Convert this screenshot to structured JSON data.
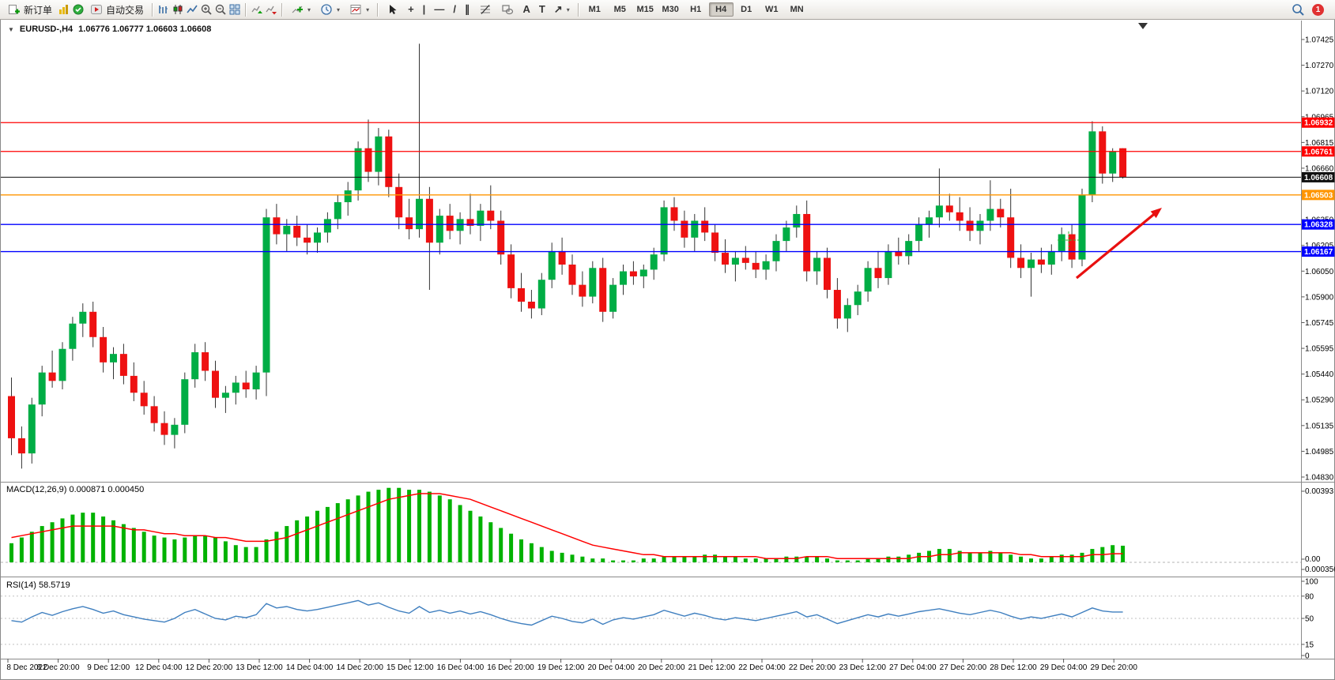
{
  "toolbar": {
    "new_order_label": "新订单",
    "autotrade_label": "自动交易",
    "timeframes": [
      "M1",
      "M5",
      "M15",
      "M30",
      "H1",
      "H4",
      "D1",
      "W1",
      "MN"
    ],
    "active_timeframe": "H4",
    "notification_badge": "1"
  },
  "icons": {
    "crosshair": "+",
    "vertical_line": "|",
    "horizontal_line": "—",
    "trendline": "/",
    "channel": "∥",
    "text": "A",
    "text_label": "T",
    "arrows": "↗",
    "dropdown": "▾",
    "title_triangle": "▼"
  },
  "colors": {
    "bull": "#00AD45",
    "bear": "#EE1111",
    "wick": "#333333",
    "macd_hist": "#00B200",
    "macd_signal": "#FF0000",
    "rsi_line": "#3F7FBF",
    "line_red": "#FF0000",
    "line_orange": "#FF9500",
    "line_blue": "#0000FF",
    "price_line": "#333333",
    "arrow": "#E81010",
    "marker_green": "#2DB52D"
  },
  "chart": {
    "title": "EURUSD-,H4",
    "ohlc": "1.06776 1.06777 1.06603 1.06608"
  },
  "chart_data": [
    {
      "type": "candlestick",
      "title": "EURUSD-,H4",
      "ohlc_display": "1.06776 1.06777 1.06603 1.06608",
      "ylim": [
        1.0483,
        1.07425
      ],
      "y_axis_labels": [
        "1.07425",
        "1.07270",
        "1.07120",
        "1.06965",
        "1.06815",
        "1.06660",
        "1.06505",
        "1.06350",
        "1.06205",
        "1.06050",
        "1.05900",
        "1.05745",
        "1.05595",
        "1.05440",
        "1.05290",
        "1.05135",
        "1.04985",
        "1.04830"
      ],
      "x_labels": [
        "8 Dec 2022",
        "8 Dec 20:00",
        "9 Dec 12:00",
        "12 Dec 04:00",
        "12 Dec 20:00",
        "13 Dec 12:00",
        "14 Dec 04:00",
        "14 Dec 20:00",
        "15 Dec 12:00",
        "16 Dec 04:00",
        "16 Dec 20:00",
        "19 Dec 12:00",
        "20 Dec 04:00",
        "20 Dec 20:00",
        "21 Dec 12:00",
        "22 Dec 04:00",
        "22 Dec 20:00",
        "23 Dec 12:00",
        "27 Dec 04:00",
        "27 Dec 20:00",
        "28 Dec 12:00",
        "29 Dec 04:00",
        "29 Dec 20:00"
      ],
      "hlines": [
        {
          "price": 1.06932,
          "label": "1.06932",
          "color": "#FF0000",
          "style": "level"
        },
        {
          "price": 1.06761,
          "label": "1.06761",
          "color": "#FF0000",
          "style": "level"
        },
        {
          "price": 1.06608,
          "label": "1.06608",
          "color": "#111111",
          "style": "current"
        },
        {
          "price": 1.06503,
          "label": "1.06503",
          "color": "#FF9500",
          "style": "level"
        },
        {
          "price": 1.06328,
          "label": "1.06328",
          "color": "#0000FF",
          "style": "level"
        },
        {
          "price": 1.06167,
          "label": "1.06167",
          "color": "#0000FF",
          "style": "level"
        }
      ],
      "arrow": {
        "from": [
          1362,
          352
        ],
        "to": [
          1470,
          263
        ]
      },
      "trade_marker": {
        "x": 1352,
        "y": 304
      },
      "candles": [
        [
          1.0531,
          1.0542,
          1.0496,
          1.0506
        ],
        [
          1.0506,
          1.0513,
          1.0488,
          1.0497
        ],
        [
          1.0497,
          1.053,
          1.0491,
          1.0526
        ],
        [
          1.0526,
          1.0549,
          1.0519,
          1.0545
        ],
        [
          1.0545,
          1.0558,
          1.0536,
          1.054
        ],
        [
          1.054,
          1.0563,
          1.0535,
          1.0559
        ],
        [
          1.0559,
          1.0578,
          1.0552,
          1.0574
        ],
        [
          1.0574,
          1.0586,
          1.0566,
          1.0581
        ],
        [
          1.0581,
          1.0587,
          1.056,
          1.0566
        ],
        [
          1.0566,
          1.0572,
          1.0545,
          1.0551
        ],
        [
          1.0551,
          1.056,
          1.0541,
          1.0556
        ],
        [
          1.0556,
          1.0562,
          1.0538,
          1.0543
        ],
        [
          1.0543,
          1.0551,
          1.0528,
          1.0533
        ],
        [
          1.0533,
          1.054,
          1.052,
          1.0525
        ],
        [
          1.0525,
          1.0531,
          1.051,
          1.0515
        ],
        [
          1.0515,
          1.0522,
          1.0502,
          1.0508
        ],
        [
          1.0508,
          1.0518,
          1.05,
          1.0514
        ],
        [
          1.0514,
          1.0545,
          1.0509,
          1.0541
        ],
        [
          1.0541,
          1.0562,
          1.0536,
          1.0557
        ],
        [
          1.0557,
          1.0563,
          1.054,
          1.0546
        ],
        [
          1.0546,
          1.0552,
          1.0524,
          1.053
        ],
        [
          1.053,
          1.0537,
          1.0521,
          1.0533
        ],
        [
          1.0533,
          1.0543,
          1.0526,
          1.0539
        ],
        [
          1.0539,
          1.0546,
          1.053,
          1.0535
        ],
        [
          1.0535,
          1.0549,
          1.0529,
          1.0545
        ],
        [
          1.0545,
          1.0642,
          1.0531,
          1.0637
        ],
        [
          1.0637,
          1.0645,
          1.0621,
          1.0627
        ],
        [
          1.0627,
          1.0636,
          1.0617,
          1.0632
        ],
        [
          1.0632,
          1.0638,
          1.062,
          1.0625
        ],
        [
          1.0625,
          1.0633,
          1.0615,
          1.0622
        ],
        [
          1.0622,
          1.0631,
          1.0616,
          1.0628
        ],
        [
          1.0628,
          1.064,
          1.0622,
          1.0636
        ],
        [
          1.0636,
          1.065,
          1.063,
          1.0646
        ],
        [
          1.0646,
          1.0658,
          1.0638,
          1.0653
        ],
        [
          1.0653,
          1.0682,
          1.0647,
          1.0678
        ],
        [
          1.0678,
          1.0695,
          1.0658,
          1.0664
        ],
        [
          1.0664,
          1.069,
          1.0656,
          1.0685
        ],
        [
          1.0685,
          1.0689,
          1.0649,
          1.0655
        ],
        [
          1.0655,
          1.0663,
          1.063,
          1.0637
        ],
        [
          1.0637,
          1.0648,
          1.0624,
          1.063
        ],
        [
          1.063,
          1.074,
          1.0625,
          1.0648
        ],
        [
          1.0648,
          1.0655,
          1.0594,
          1.0622
        ],
        [
          1.0622,
          1.0642,
          1.0615,
          1.0638
        ],
        [
          1.0638,
          1.0645,
          1.0624,
          1.0629
        ],
        [
          1.0629,
          1.064,
          1.0621,
          1.0636
        ],
        [
          1.0636,
          1.0651,
          1.0627,
          1.0632
        ],
        [
          1.0632,
          1.0645,
          1.0623,
          1.0641
        ],
        [
          1.0641,
          1.0656,
          1.063,
          1.0635
        ],
        [
          1.0635,
          1.0641,
          1.0609,
          1.0615
        ],
        [
          1.0615,
          1.0621,
          1.0589,
          1.0595
        ],
        [
          1.0595,
          1.0604,
          1.0581,
          1.0587
        ],
        [
          1.0587,
          1.0594,
          1.0577,
          1.0583
        ],
        [
          1.0583,
          1.0604,
          1.0579,
          1.06
        ],
        [
          1.06,
          1.0622,
          1.0595,
          1.0617
        ],
        [
          1.0617,
          1.0625,
          1.0603,
          1.0609
        ],
        [
          1.0609,
          1.0615,
          1.0591,
          1.0597
        ],
        [
          1.0597,
          1.0605,
          1.0584,
          1.059
        ],
        [
          1.059,
          1.0611,
          1.0586,
          1.0607
        ],
        [
          1.0607,
          1.0613,
          1.0575,
          1.0581
        ],
        [
          1.0581,
          1.0601,
          1.0577,
          1.0597
        ],
        [
          1.0597,
          1.0609,
          1.0591,
          1.0605
        ],
        [
          1.0605,
          1.0611,
          1.0597,
          1.0602
        ],
        [
          1.0602,
          1.0609,
          1.0595,
          1.0606
        ],
        [
          1.0606,
          1.0619,
          1.06,
          1.0615
        ],
        [
          1.0615,
          1.0647,
          1.0611,
          1.0643
        ],
        [
          1.0643,
          1.0649,
          1.0629,
          1.0635
        ],
        [
          1.0635,
          1.0641,
          1.0619,
          1.0625
        ],
        [
          1.0625,
          1.0639,
          1.0617,
          1.0635
        ],
        [
          1.0635,
          1.0643,
          1.0623,
          1.0628
        ],
        [
          1.0628,
          1.0633,
          1.0611,
          1.0616
        ],
        [
          1.0616,
          1.0624,
          1.0604,
          1.0609
        ],
        [
          1.0609,
          1.0617,
          1.0599,
          1.0613
        ],
        [
          1.0613,
          1.062,
          1.0606,
          1.061
        ],
        [
          1.061,
          1.0617,
          1.0601,
          1.0606
        ],
        [
          1.0606,
          1.0615,
          1.06,
          1.0611
        ],
        [
          1.0611,
          1.0627,
          1.0605,
          1.0623
        ],
        [
          1.0623,
          1.0635,
          1.0617,
          1.0631
        ],
        [
          1.0631,
          1.0644,
          1.0625,
          1.0639
        ],
        [
          1.0639,
          1.0647,
          1.0599,
          1.0605
        ],
        [
          1.0605,
          1.0617,
          1.0597,
          1.0613
        ],
        [
          1.0613,
          1.0619,
          1.0589,
          1.0594
        ],
        [
          1.0594,
          1.0601,
          1.0571,
          1.0577
        ],
        [
          1.0577,
          1.0589,
          1.0569,
          1.0585
        ],
        [
          1.0585,
          1.0597,
          1.0579,
          1.0593
        ],
        [
          1.0593,
          1.0611,
          1.0587,
          1.0607
        ],
        [
          1.0607,
          1.0617,
          1.0595,
          1.0601
        ],
        [
          1.0601,
          1.0621,
          1.0597,
          1.0617
        ],
        [
          1.0617,
          1.0625,
          1.0609,
          1.0614
        ],
        [
          1.0614,
          1.0627,
          1.0609,
          1.0623
        ],
        [
          1.0623,
          1.0637,
          1.0617,
          1.0633
        ],
        [
          1.0633,
          1.0641,
          1.0625,
          1.0637
        ],
        [
          1.0637,
          1.0666,
          1.0631,
          1.0644
        ],
        [
          1.0644,
          1.0651,
          1.0635,
          1.064
        ],
        [
          1.064,
          1.0649,
          1.0629,
          1.0635
        ],
        [
          1.0635,
          1.0643,
          1.0623,
          1.0629
        ],
        [
          1.0629,
          1.0639,
          1.0621,
          1.0635
        ],
        [
          1.0635,
          1.0659,
          1.0629,
          1.0642
        ],
        [
          1.0642,
          1.0648,
          1.0631,
          1.0637
        ],
        [
          1.0637,
          1.0654,
          1.0607,
          1.0613
        ],
        [
          1.0613,
          1.0621,
          1.0601,
          1.0607
        ],
        [
          1.0607,
          1.0616,
          1.059,
          1.0612
        ],
        [
          1.0612,
          1.0619,
          1.0604,
          1.0609
        ],
        [
          1.0609,
          1.0621,
          1.0603,
          1.0617
        ],
        [
          1.0617,
          1.0631,
          1.0611,
          1.0627
        ],
        [
          1.0627,
          1.0633,
          1.0607,
          1.0612
        ],
        [
          1.0612,
          1.0654,
          1.0608,
          1.065
        ],
        [
          1.065,
          1.0694,
          1.0646,
          1.0688
        ],
        [
          1.0688,
          1.0691,
          1.0657,
          1.0663
        ],
        [
          1.0663,
          1.0678,
          1.0658,
          1.0676
        ],
        [
          1.0678,
          1.0678,
          1.066,
          1.0661
        ]
      ]
    },
    {
      "type": "bar",
      "name": "MACD",
      "label": "MACD(12,26,9) 0.000871 0.000450",
      "ymax": 0.00393,
      "y_axis_labels": [
        "0.00393",
        "0.00",
        "0.000356"
      ],
      "values": [
        0.001,
        0.0013,
        0.0016,
        0.0019,
        0.0021,
        0.0023,
        0.0025,
        0.0026,
        0.0026,
        0.0024,
        0.0022,
        0.002,
        0.0018,
        0.0016,
        0.0014,
        0.0013,
        0.0012,
        0.0013,
        0.0014,
        0.0014,
        0.0013,
        0.0011,
        0.0009,
        0.0008,
        0.0008,
        0.0012,
        0.0016,
        0.0019,
        0.0022,
        0.0024,
        0.0027,
        0.0029,
        0.0031,
        0.0033,
        0.0035,
        0.0037,
        0.0038,
        0.0039,
        0.0039,
        0.0038,
        0.0038,
        0.0037,
        0.0035,
        0.0033,
        0.003,
        0.0027,
        0.0024,
        0.0021,
        0.0018,
        0.0015,
        0.0012,
        0.001,
        0.0008,
        0.0006,
        0.0005,
        0.0004,
        0.0003,
        0.0002,
        0.0002,
        0.0001,
        0.0001,
        0.0001,
        0.0002,
        0.0002,
        0.0003,
        0.0003,
        0.0003,
        0.0003,
        0.0004,
        0.0004,
        0.0003,
        0.0003,
        0.0002,
        0.0002,
        0.0002,
        0.0002,
        0.0003,
        0.0003,
        0.0003,
        0.0003,
        0.0002,
        0.0001,
        0.0001,
        0.0001,
        0.0002,
        0.0002,
        0.0003,
        0.0003,
        0.0004,
        0.0005,
        0.0006,
        0.0007,
        0.0007,
        0.0006,
        0.0005,
        0.0005,
        0.0006,
        0.0005,
        0.0004,
        0.0003,
        0.0002,
        0.0002,
        0.0003,
        0.0004,
        0.0004,
        0.0005,
        0.0007,
        0.0008,
        0.0009,
        0.00087
      ],
      "signal": [
        0.0013,
        0.0014,
        0.0015,
        0.0016,
        0.0017,
        0.0018,
        0.0019,
        0.0019,
        0.0019,
        0.0019,
        0.0019,
        0.0018,
        0.0017,
        0.0017,
        0.0016,
        0.0015,
        0.0015,
        0.0014,
        0.0014,
        0.0014,
        0.0013,
        0.0013,
        0.0012,
        0.0011,
        0.0011,
        0.0011,
        0.0012,
        0.0013,
        0.0015,
        0.0017,
        0.0019,
        0.0021,
        0.0023,
        0.0025,
        0.0027,
        0.0029,
        0.0031,
        0.0033,
        0.0034,
        0.0035,
        0.0036,
        0.0036,
        0.0036,
        0.0035,
        0.0034,
        0.0033,
        0.0031,
        0.0029,
        0.0027,
        0.0025,
        0.0023,
        0.0021,
        0.0019,
        0.0017,
        0.0015,
        0.0013,
        0.0011,
        0.0009,
        0.0008,
        0.0007,
        0.0006,
        0.0005,
        0.0004,
        0.0004,
        0.0003,
        0.0003,
        0.0003,
        0.0003,
        0.0003,
        0.0003,
        0.0003,
        0.0003,
        0.0003,
        0.0003,
        0.0002,
        0.0002,
        0.0002,
        0.0002,
        0.0003,
        0.0003,
        0.0003,
        0.0002,
        0.0002,
        0.0002,
        0.0002,
        0.0002,
        0.0002,
        0.0002,
        0.0002,
        0.0003,
        0.0003,
        0.0004,
        0.0004,
        0.0005,
        0.0005,
        0.0005,
        0.0005,
        0.0005,
        0.0005,
        0.0004,
        0.0004,
        0.0003,
        0.0003,
        0.0003,
        0.0003,
        0.0003,
        0.0004,
        0.0004,
        0.00045,
        0.00045
      ]
    },
    {
      "type": "line",
      "name": "RSI",
      "label": "RSI(14) 58.5719",
      "ylim": [
        0,
        100
      ],
      "levels": [
        80,
        50,
        15
      ],
      "y_axis_labels": [
        "100",
        "80",
        "50",
        "15",
        "0"
      ],
      "values": [
        47,
        45,
        52,
        58,
        54,
        59,
        63,
        66,
        62,
        57,
        60,
        55,
        52,
        49,
        47,
        45,
        50,
        58,
        62,
        56,
        50,
        48,
        53,
        51,
        55,
        70,
        64,
        66,
        62,
        60,
        62,
        65,
        68,
        71,
        74,
        68,
        71,
        65,
        60,
        57,
        66,
        58,
        61,
        57,
        60,
        56,
        59,
        55,
        50,
        46,
        43,
        41,
        47,
        53,
        50,
        46,
        44,
        49,
        42,
        48,
        51,
        49,
        52,
        55,
        61,
        57,
        53,
        57,
        54,
        50,
        48,
        51,
        49,
        47,
        50,
        53,
        56,
        59,
        52,
        55,
        49,
        43,
        47,
        51,
        55,
        52,
        56,
        53,
        56,
        59,
        61,
        63,
        60,
        57,
        55,
        58,
        61,
        58,
        53,
        49,
        52,
        50,
        53,
        56,
        52,
        58,
        64,
        60,
        58.6,
        58.6
      ]
    }
  ]
}
